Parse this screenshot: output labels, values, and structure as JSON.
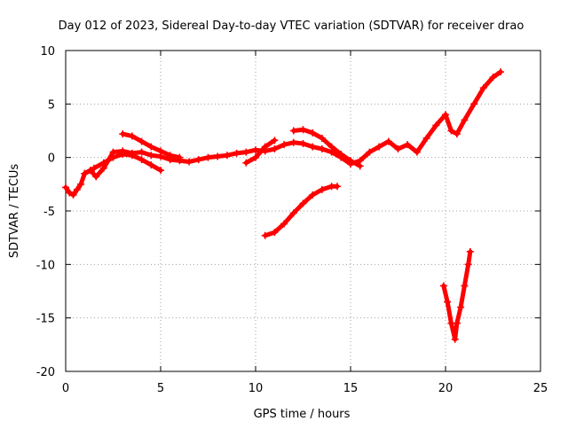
{
  "chart_data": {
    "type": "scatter",
    "title": "Day 012 of 2023, Sidereal Day-to-day VTEC variation (SDTVAR) for receiver drao",
    "xlabel": "GPS time / hours",
    "ylabel": "SDTVAR / TECUs",
    "xlim": [
      0,
      25
    ],
    "ylim": [
      -20,
      10
    ],
    "xticks": [
      0,
      5,
      10,
      15,
      20,
      25
    ],
    "yticks": [
      -20,
      -15,
      -10,
      -5,
      0,
      5,
      10
    ],
    "grid": true,
    "marker": "+",
    "color": "#ff0000",
    "series": [
      {
        "x": [
          0.0,
          0.2,
          0.4,
          0.6,
          0.8,
          1.0,
          1.3,
          1.6,
          2.0,
          2.5,
          3.0,
          3.5,
          4.0,
          4.5,
          5.0,
          5.5,
          6.0,
          6.5,
          7.0,
          7.5,
          8.0,
          8.5,
          9.0,
          9.5,
          10.0,
          10.5,
          11.0,
          11.5,
          12.0,
          12.5,
          13.0,
          13.5,
          14.0,
          14.5,
          15.0,
          15.5,
          16.0,
          16.5,
          17.0,
          17.5,
          18.0,
          18.5,
          19.0,
          19.5,
          20.0,
          20.3,
          20.6,
          21.0,
          21.5,
          22.0,
          22.5,
          22.9
        ],
        "y": [
          -2.8,
          -3.3,
          -3.5,
          -3.0,
          -2.5,
          -1.5,
          -1.2,
          -1.8,
          -1.0,
          0.5,
          0.6,
          0.4,
          0.5,
          0.2,
          0.1,
          -0.2,
          -0.3,
          -0.4,
          -0.2,
          0.0,
          0.1,
          0.2,
          0.4,
          0.5,
          0.7,
          0.6,
          0.8,
          1.2,
          1.4,
          1.3,
          1.0,
          0.8,
          0.5,
          0.0,
          -0.6,
          -0.3,
          0.5,
          1.0,
          1.5,
          0.8,
          1.2,
          0.5,
          1.8,
          3.0,
          4.0,
          2.5,
          2.2,
          3.5,
          5.0,
          6.5,
          7.5,
          8.0
        ]
      },
      {
        "x": [
          3.0,
          3.5,
          4.0,
          4.5,
          5.0,
          5.5,
          6.0
        ],
        "y": [
          2.2,
          2.0,
          1.5,
          1.0,
          0.6,
          0.2,
          0.0
        ]
      },
      {
        "x": [
          1.0,
          1.5,
          2.0,
          2.5,
          3.0,
          3.5,
          4.0,
          4.5,
          5.0
        ],
        "y": [
          -1.5,
          -1.0,
          -0.5,
          0.0,
          0.3,
          0.2,
          -0.2,
          -0.7,
          -1.2
        ]
      },
      {
        "x": [
          9.5,
          10.0,
          10.5,
          11.0
        ],
        "y": [
          -0.5,
          0.0,
          1.0,
          1.6
        ]
      },
      {
        "x": [
          12.0,
          12.5,
          13.0,
          13.5,
          14.0,
          14.5,
          15.0,
          15.5
        ],
        "y": [
          2.5,
          2.6,
          2.3,
          1.8,
          1.0,
          0.3,
          -0.3,
          -0.8
        ]
      },
      {
        "x": [
          10.5,
          11.0,
          11.5,
          12.0,
          12.5,
          13.0,
          13.5,
          14.0,
          14.3
        ],
        "y": [
          -7.3,
          -7.0,
          -6.2,
          -5.2,
          -4.3,
          -3.5,
          -3.0,
          -2.7,
          -2.7
        ]
      },
      {
        "x": [
          19.9,
          20.1,
          20.3,
          20.5,
          20.6,
          20.8,
          21.0,
          21.2,
          21.3
        ],
        "y": [
          -12.0,
          -13.5,
          -15.5,
          -17.0,
          -15.5,
          -14.0,
          -12.0,
          -10.0,
          -8.8
        ]
      }
    ]
  }
}
